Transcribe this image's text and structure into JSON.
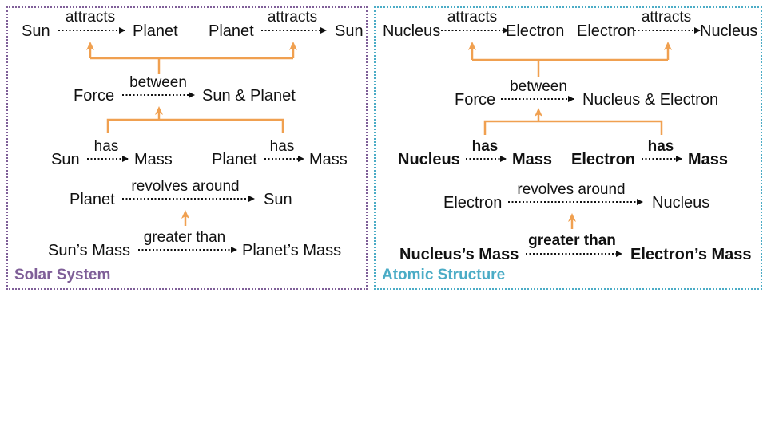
{
  "colors": {
    "solar": "#7f5f98",
    "atomic": "#4bacc6",
    "connector": "#f0a050",
    "relation": "#111111"
  },
  "solar": {
    "label": "Solar System",
    "attract1": {
      "subject": "Sun",
      "relation": "attracts",
      "object": "Planet"
    },
    "attract2": {
      "subject": "Planet",
      "relation": "attracts",
      "object": "Sun"
    },
    "force": {
      "subject": "Force",
      "relation": "between",
      "object": "Sun & Planet"
    },
    "mass1": {
      "subject": "Sun",
      "relation": "has",
      "object": "Mass"
    },
    "mass2": {
      "subject": "Planet",
      "relation": "has",
      "object": "Mass"
    },
    "revolve": {
      "subject": "Planet",
      "relation": "revolves around",
      "object": "Sun"
    },
    "compare": {
      "subject": "Sun’s Mass",
      "relation": "greater than",
      "object": "Planet’s Mass"
    }
  },
  "atomic": {
    "label": "Atomic Structure",
    "attract1": {
      "subject": "Nucleus",
      "relation": "attracts",
      "object": "Electron"
    },
    "attract2": {
      "subject": "Electron",
      "relation": "attracts",
      "object": "Nucleus"
    },
    "force": {
      "subject": "Force",
      "relation": "between",
      "object": "Nucleus & Electron"
    },
    "mass1": {
      "subject": "Nucleus",
      "relation": "has",
      "object": "Mass"
    },
    "mass2": {
      "subject": "Electron",
      "relation": "has",
      "object": "Mass"
    },
    "revolve": {
      "subject": "Electron",
      "relation": "revolves around",
      "object": "Nucleus"
    },
    "compare": {
      "subject": "Nucleus’s Mass",
      "relation": "greater than",
      "object": "Electron’s Mass"
    }
  }
}
